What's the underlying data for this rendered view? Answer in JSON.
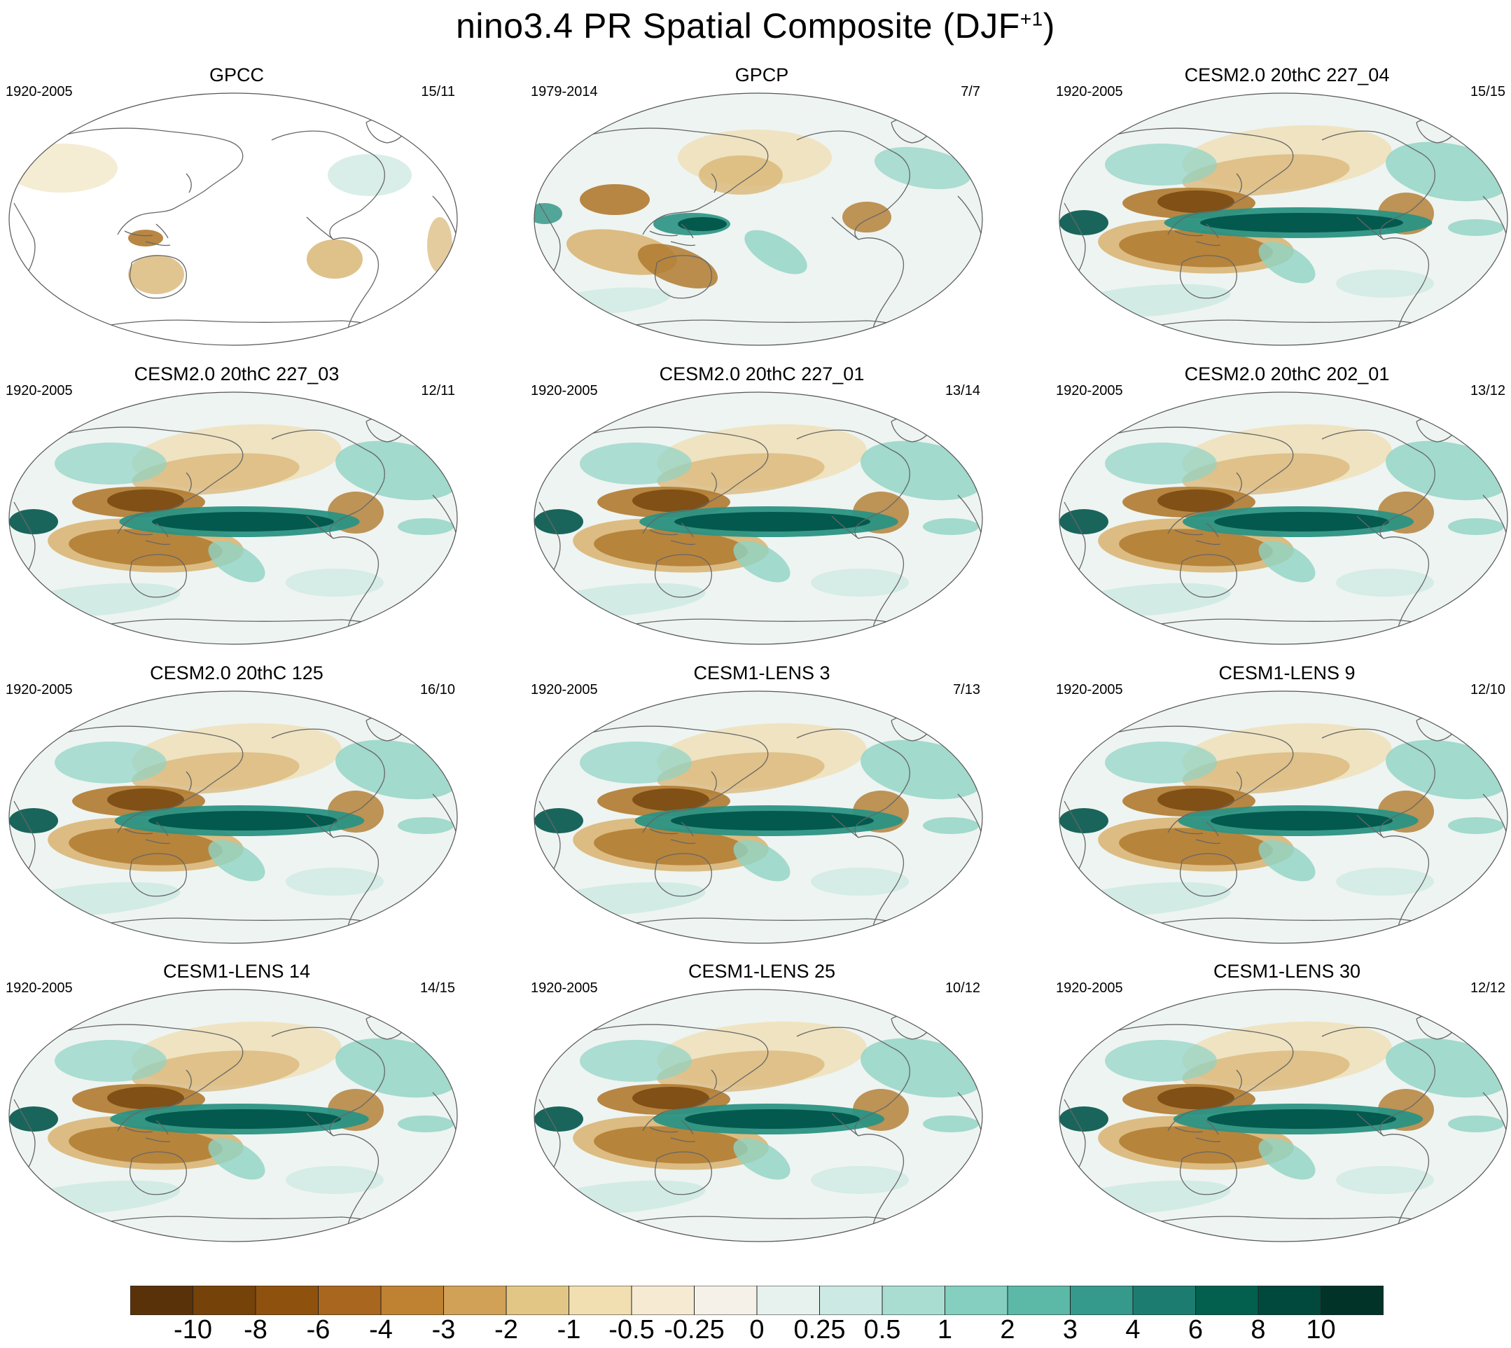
{
  "title": {
    "main": "nino3.4 PR Spatial Composite (DJF",
    "sup": "+1",
    "close": ")"
  },
  "panels": [
    {
      "title": "GPCC",
      "period": "1920-2005",
      "count": "15/11",
      "style": "gpcc"
    },
    {
      "title": "GPCP",
      "period": "1979-2014",
      "count": "7/7",
      "style": "obs"
    },
    {
      "title": "CESM2.0 20thC 227_04",
      "period": "1920-2005",
      "count": "15/15",
      "style": "model"
    },
    {
      "title": "CESM2.0 20thC 227_03",
      "period": "1920-2005",
      "count": "12/11",
      "style": "model"
    },
    {
      "title": "CESM2.0 20thC 227_01",
      "period": "1920-2005",
      "count": "13/14",
      "style": "model"
    },
    {
      "title": "CESM2.0 20thC 202_01",
      "period": "1920-2005",
      "count": "13/12",
      "style": "model"
    },
    {
      "title": "CESM2.0 20thC 125",
      "period": "1920-2005",
      "count": "16/10",
      "style": "model"
    },
    {
      "title": "CESM1-LENS 3",
      "period": "1920-2005",
      "count": "7/13",
      "style": "model"
    },
    {
      "title": "CESM1-LENS 9",
      "period": "1920-2005",
      "count": "12/10",
      "style": "model"
    },
    {
      "title": "CESM1-LENS 14",
      "period": "1920-2005",
      "count": "14/15",
      "style": "model"
    },
    {
      "title": "CESM1-LENS 25",
      "period": "1920-2005",
      "count": "10/12",
      "style": "model"
    },
    {
      "title": "CESM1-LENS 30",
      "period": "1920-2005",
      "count": "12/12",
      "style": "model"
    }
  ],
  "colorbar": {
    "labels": [
      "-10",
      "-8",
      "-6",
      "-4",
      "-3",
      "-2",
      "-1",
      "-0.5",
      "-0.25",
      "0",
      "0.25",
      "0.5",
      "1",
      "2",
      "3",
      "4",
      "6",
      "8",
      "10"
    ],
    "colors": [
      "#5a320a",
      "#754209",
      "#8f520e",
      "#a9661e",
      "#be8232",
      "#d0a157",
      "#e2c686",
      "#f1dfb1",
      "#f6ebd2",
      "#f5f1e8",
      "#e7f2ef",
      "#cce9e3",
      "#a9ddd2",
      "#84cfc0",
      "#5cb8a7",
      "#35998c",
      "#1d7c70",
      "#03604f",
      "#00493c",
      "#013329"
    ]
  }
}
